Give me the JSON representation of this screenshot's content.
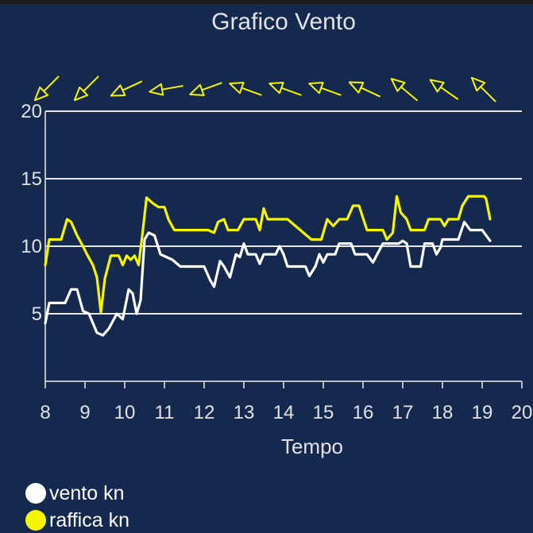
{
  "chart_data": {
    "type": "line",
    "title": "Grafico Vento",
    "xlabel": "Tempo",
    "ylabel": "",
    "xlim": [
      8,
      20
    ],
    "ylim": [
      0,
      20
    ],
    "x_ticks": [
      8,
      9,
      10,
      11,
      12,
      13,
      14,
      15,
      16,
      17,
      18,
      19,
      20
    ],
    "y_ticks": [
      5,
      10,
      15,
      20
    ],
    "grid": "horizontal",
    "legend_position": "bottom-left",
    "series": [
      {
        "name": "vento kn",
        "color": "#ffffff",
        "points": [
          [
            8.0,
            4.3
          ],
          [
            8.1,
            5.8
          ],
          [
            8.5,
            5.8
          ],
          [
            8.65,
            6.8
          ],
          [
            8.8,
            6.8
          ],
          [
            8.95,
            5.2
          ],
          [
            9.1,
            5.0
          ],
          [
            9.3,
            3.6
          ],
          [
            9.45,
            3.4
          ],
          [
            9.6,
            3.9
          ],
          [
            9.8,
            5.0
          ],
          [
            9.95,
            4.6
          ],
          [
            10.1,
            6.8
          ],
          [
            10.2,
            6.5
          ],
          [
            10.3,
            5.0
          ],
          [
            10.4,
            6.0
          ],
          [
            10.5,
            10.5
          ],
          [
            10.6,
            11.0
          ],
          [
            10.75,
            10.8
          ],
          [
            10.9,
            9.4
          ],
          [
            11.2,
            9.0
          ],
          [
            11.4,
            8.5
          ],
          [
            12.0,
            8.5
          ],
          [
            12.15,
            7.5
          ],
          [
            12.25,
            7.0
          ],
          [
            12.4,
            8.9
          ],
          [
            12.5,
            8.5
          ],
          [
            12.65,
            7.7
          ],
          [
            12.8,
            9.4
          ],
          [
            12.9,
            9.2
          ],
          [
            13.0,
            10.2
          ],
          [
            13.1,
            9.4
          ],
          [
            13.3,
            9.4
          ],
          [
            13.4,
            8.7
          ],
          [
            13.5,
            9.4
          ],
          [
            13.8,
            9.4
          ],
          [
            13.9,
            10.0
          ],
          [
            14.0,
            9.4
          ],
          [
            14.1,
            8.5
          ],
          [
            14.55,
            8.5
          ],
          [
            14.65,
            7.8
          ],
          [
            14.8,
            8.5
          ],
          [
            14.9,
            9.4
          ],
          [
            15.0,
            8.8
          ],
          [
            15.1,
            9.4
          ],
          [
            15.3,
            9.4
          ],
          [
            15.4,
            10.2
          ],
          [
            15.7,
            10.2
          ],
          [
            15.8,
            9.4
          ],
          [
            16.1,
            9.4
          ],
          [
            16.25,
            8.8
          ],
          [
            16.5,
            10.2
          ],
          [
            16.9,
            10.2
          ],
          [
            17.0,
            10.4
          ],
          [
            17.1,
            10.2
          ],
          [
            17.2,
            8.5
          ],
          [
            17.45,
            8.5
          ],
          [
            17.55,
            10.2
          ],
          [
            17.75,
            10.2
          ],
          [
            17.85,
            9.4
          ],
          [
            17.95,
            9.9
          ],
          [
            18.0,
            10.5
          ],
          [
            18.4,
            10.5
          ],
          [
            18.55,
            11.8
          ],
          [
            18.7,
            11.2
          ],
          [
            19.0,
            11.2
          ],
          [
            19.1,
            10.8
          ],
          [
            19.2,
            10.4
          ]
        ]
      },
      {
        "name": "raffica kn",
        "color": "#f5f500",
        "points": [
          [
            8.0,
            8.6
          ],
          [
            8.1,
            10.5
          ],
          [
            8.4,
            10.5
          ],
          [
            8.55,
            12.0
          ],
          [
            8.65,
            11.8
          ],
          [
            8.8,
            10.8
          ],
          [
            8.95,
            10.0
          ],
          [
            9.05,
            9.4
          ],
          [
            9.2,
            8.6
          ],
          [
            9.3,
            7.7
          ],
          [
            9.4,
            5.1
          ],
          [
            9.5,
            7.6
          ],
          [
            9.65,
            9.3
          ],
          [
            9.85,
            9.3
          ],
          [
            9.95,
            8.6
          ],
          [
            10.05,
            9.3
          ],
          [
            10.15,
            9.0
          ],
          [
            10.25,
            9.3
          ],
          [
            10.35,
            8.6
          ],
          [
            10.45,
            11.0
          ],
          [
            10.55,
            13.6
          ],
          [
            10.7,
            13.2
          ],
          [
            10.85,
            12.9
          ],
          [
            11.0,
            12.9
          ],
          [
            11.1,
            12.0
          ],
          [
            11.25,
            11.2
          ],
          [
            12.1,
            11.2
          ],
          [
            12.25,
            11.0
          ],
          [
            12.35,
            11.8
          ],
          [
            12.5,
            12.0
          ],
          [
            12.6,
            11.2
          ],
          [
            12.85,
            11.2
          ],
          [
            13.0,
            12.0
          ],
          [
            13.3,
            12.0
          ],
          [
            13.4,
            11.2
          ],
          [
            13.5,
            12.8
          ],
          [
            13.6,
            12.0
          ],
          [
            14.1,
            12.0
          ],
          [
            14.3,
            11.5
          ],
          [
            14.5,
            11.0
          ],
          [
            14.7,
            10.5
          ],
          [
            14.95,
            10.5
          ],
          [
            15.1,
            12.0
          ],
          [
            15.25,
            11.5
          ],
          [
            15.4,
            12.0
          ],
          [
            15.6,
            12.0
          ],
          [
            15.75,
            13.0
          ],
          [
            15.9,
            13.0
          ],
          [
            16.1,
            11.2
          ],
          [
            16.5,
            11.2
          ],
          [
            16.6,
            10.5
          ],
          [
            16.75,
            11.0
          ],
          [
            16.85,
            13.7
          ],
          [
            16.95,
            12.5
          ],
          [
            17.1,
            12.0
          ],
          [
            17.2,
            11.2
          ],
          [
            17.55,
            11.2
          ],
          [
            17.65,
            12.0
          ],
          [
            17.95,
            12.0
          ],
          [
            18.05,
            11.5
          ],
          [
            18.15,
            12.0
          ],
          [
            18.4,
            12.0
          ],
          [
            18.5,
            13.0
          ],
          [
            18.65,
            13.7
          ],
          [
            19.05,
            13.7
          ],
          [
            19.1,
            13.5
          ],
          [
            19.2,
            12.0
          ]
        ]
      }
    ],
    "direction_markers": [
      {
        "x": 8.0,
        "bearing": 45
      },
      {
        "x": 9.0,
        "bearing": 45
      },
      {
        "x": 10.0,
        "bearing": 65
      },
      {
        "x": 11.0,
        "bearing": 80
      },
      {
        "x": 12.0,
        "bearing": 70
      },
      {
        "x": 13.0,
        "bearing": 110
      },
      {
        "x": 14.0,
        "bearing": 110
      },
      {
        "x": 15.0,
        "bearing": 110
      },
      {
        "x": 16.0,
        "bearing": 115
      },
      {
        "x": 17.0,
        "bearing": 130
      },
      {
        "x": 18.0,
        "bearing": 125
      },
      {
        "x": 19.0,
        "bearing": 135
      }
    ]
  }
}
